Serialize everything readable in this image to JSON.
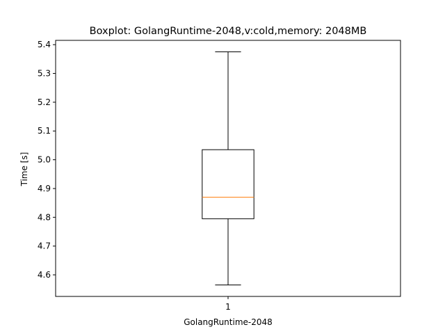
{
  "chart_data": {
    "type": "boxplot",
    "title": "Boxplot: GolangRuntime-2048,v:cold,memory: 2048MB",
    "xlabel": "GolangRuntime-2048",
    "ylabel": "Time [s]",
    "ylim": [
      4.525,
      5.415
    ],
    "yticks": [
      4.6,
      4.7,
      4.8,
      4.9,
      5.0,
      5.1,
      5.2,
      5.3,
      5.4
    ],
    "ytick_labels": [
      "4.6",
      "4.7",
      "4.8",
      "4.9",
      "5.0",
      "5.1",
      "5.2",
      "5.3",
      "5.4"
    ],
    "xlim": [
      0.5,
      1.5
    ],
    "categories": [
      "1"
    ],
    "series": [
      {
        "position": 1,
        "whisker_low": 4.565,
        "q1": 4.795,
        "median": 4.87,
        "q3": 5.035,
        "whisker_high": 5.375
      }
    ],
    "colors": {
      "box": "#000000",
      "median": "#ff7f0e"
    },
    "grid": false,
    "legend": "none"
  }
}
